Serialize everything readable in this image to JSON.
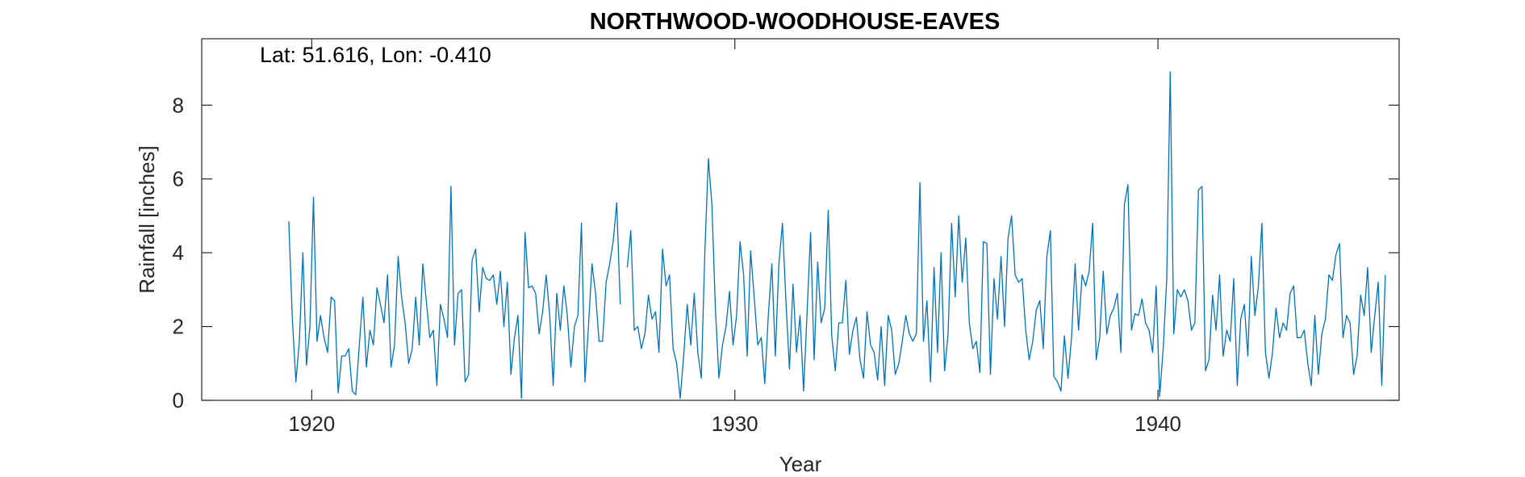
{
  "chart_data": {
    "type": "line",
    "title": "NORTHWOOD-WOODHOUSE-EAVES",
    "annotation": "Lat: 51.616, Lon: -0.410",
    "xlabel": "Year",
    "ylabel": "Rainfall [inches]",
    "xlim": [
      1917.4,
      1945.7
    ],
    "ylim": [
      0,
      9.8
    ],
    "xticks": [
      1920,
      1930,
      1940
    ],
    "xtick_labels": [
      "1920",
      "1930",
      "1940"
    ],
    "yticks": [
      0,
      2,
      4,
      6,
      8
    ],
    "ytick_labels": [
      "0",
      "2",
      "4",
      "6",
      "8"
    ],
    "grid": false,
    "line_color": "#0072BD",
    "series": [
      {
        "start_year": 1919.458,
        "step_years": 0.08333,
        "values": [
          4.85,
          2.2,
          0.5,
          1.6,
          4.0,
          0.95,
          2.0,
          5.5,
          1.6,
          2.3,
          1.7,
          1.3,
          2.8,
          2.7,
          0.2,
          1.2,
          1.2,
          1.4,
          0.25,
          0.15,
          1.5,
          2.8,
          0.9,
          1.9,
          1.5,
          3.05,
          2.6,
          2.1,
          3.4,
          0.9,
          1.5,
          3.9,
          2.8,
          2.1,
          1.0,
          1.4,
          2.8,
          1.5,
          3.7,
          2.7,
          1.7,
          1.9,
          0.4,
          2.6,
          2.2,
          1.7,
          5.8,
          1.5,
          2.9,
          3.0,
          0.5,
          0.7,
          3.8,
          4.1,
          2.4,
          3.6,
          3.3,
          3.25,
          3.4,
          2.6,
          3.5,
          2.0,
          3.2,
          0.7,
          1.7,
          2.3,
          0.05,
          4.55,
          3.05,
          3.1,
          2.9,
          1.8,
          2.4,
          3.4,
          2.3,
          0.4,
          2.9,
          1.9,
          3.1,
          2.3,
          0.9,
          2.0,
          2.3,
          4.8,
          0.5,
          2.0,
          3.7,
          2.9,
          1.6,
          1.6,
          3.2,
          3.7,
          4.3,
          5.35,
          2.6,
          null,
          3.6,
          4.6,
          1.9,
          2.0,
          1.4,
          1.8,
          2.85,
          2.2,
          2.4,
          1.3,
          4.1,
          3.1,
          3.4,
          1.4,
          1.0,
          0.05,
          1.2,
          2.6,
          1.5,
          2.9,
          1.3,
          0.6,
          4.0,
          6.55,
          5.3,
          2.5,
          0.6,
          1.5,
          2.0,
          2.95,
          1.5,
          2.3,
          4.3,
          3.4,
          1.2,
          4.05,
          2.8,
          1.5,
          1.7,
          0.45,
          2.3,
          3.7,
          1.2,
          3.7,
          4.8,
          2.7,
          0.85,
          3.15,
          1.3,
          2.3,
          0.25,
          2.4,
          4.55,
          1.1,
          3.75,
          2.1,
          2.5,
          5.15,
          1.75,
          0.8,
          2.1,
          2.1,
          3.25,
          1.25,
          1.9,
          2.25,
          1.1,
          0.6,
          2.4,
          1.5,
          1.3,
          0.55,
          2.0,
          0.4,
          2.3,
          1.9,
          0.7,
          1.0,
          1.6,
          2.3,
          1.8,
          1.6,
          1.8,
          5.9,
          1.6,
          2.7,
          0.5,
          3.6,
          1.3,
          4.0,
          0.8,
          1.8,
          4.8,
          2.8,
          5.0,
          3.2,
          4.4,
          2.1,
          1.4,
          1.6,
          0.75,
          4.3,
          4.25,
          0.7,
          3.3,
          2.2,
          3.9,
          2.0,
          4.4,
          5.0,
          3.4,
          3.2,
          3.3,
          1.9,
          1.1,
          1.6,
          2.45,
          2.7,
          1.4,
          3.9,
          4.6,
          0.65,
          0.5,
          0.25,
          1.75,
          0.6,
          1.7,
          3.7,
          1.9,
          3.4,
          3.1,
          3.5,
          4.8,
          1.1,
          1.7,
          3.5,
          1.8,
          2.3,
          2.5,
          2.9,
          1.3,
          5.3,
          5.85,
          1.9,
          2.35,
          2.3,
          2.75,
          2.1,
          1.9,
          1.3,
          3.1,
          0.1,
          1.4,
          3.3,
          8.9,
          1.8,
          3.0,
          2.8,
          3.0,
          2.7,
          1.9,
          2.1,
          5.7,
          5.8,
          0.8,
          1.1,
          2.85,
          1.9,
          3.4,
          1.2,
          1.9,
          1.6,
          3.3,
          0.4,
          2.2,
          2.6,
          1.2,
          3.9,
          2.3,
          3.1,
          4.8,
          1.3,
          0.6,
          1.3,
          2.5,
          1.7,
          2.1,
          1.9,
          2.9,
          3.1,
          1.7,
          1.7,
          1.9,
          1.0,
          0.4,
          2.3,
          0.7,
          1.8,
          2.2,
          3.4,
          3.25,
          3.95,
          4.25,
          1.7,
          2.3,
          2.1,
          0.7,
          1.2,
          2.85,
          2.3,
          3.6,
          1.3,
          2.3,
          3.2,
          0.4,
          3.4
        ]
      }
    ]
  }
}
